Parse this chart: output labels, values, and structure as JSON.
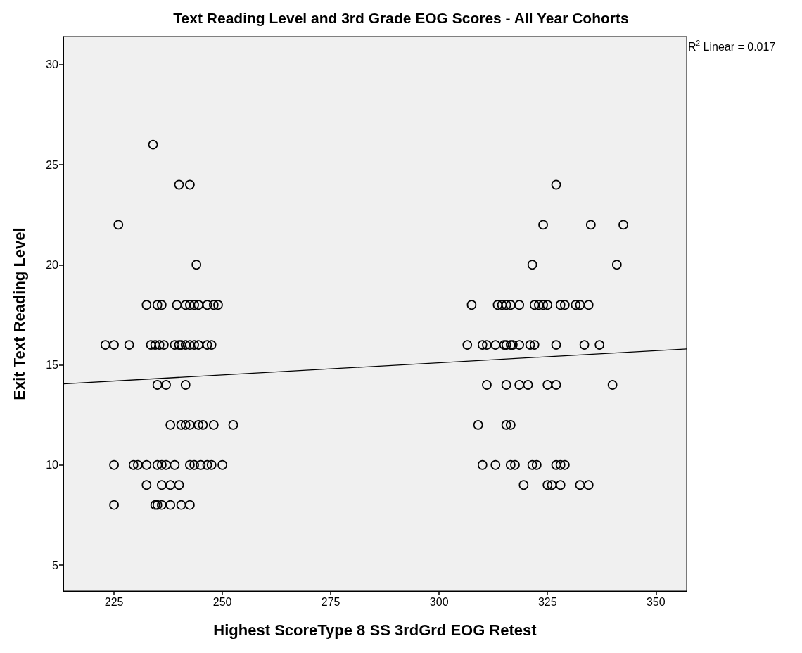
{
  "chart_data": {
    "type": "scatter",
    "title": "Text Reading Level and 3rd Grade EOG Scores - All Year Cohorts",
    "xlabel": "Highest ScoreType 8 SS 3rdGrd EOG Retest",
    "ylabel": "Exit Text Reading Level",
    "annotations": [
      "R$^{2}$ Linear = 0.017"
    ],
    "xlim": [
      213.3,
      357.1
    ],
    "ylim": [
      3.7,
      31.4
    ],
    "xticks": [
      225,
      250,
      275,
      300,
      325,
      350
    ],
    "yticks": [
      5,
      10,
      15,
      20,
      25,
      30
    ],
    "marker": "circle",
    "series": [
      {
        "color": "#000000",
        "x": [
          234,
          240,
          242.5,
          226,
          244,
          232.5,
          235,
          236,
          239.5,
          241.5,
          242.5,
          243.5,
          244.5,
          246.5,
          248,
          249,
          223,
          225,
          228.5,
          233.5,
          234.5,
          235.5,
          236.5,
          239,
          240,
          240.5,
          241.5,
          242.5,
          243.5,
          244.5,
          246.5,
          247.5,
          235,
          237,
          241.5,
          238,
          240.5,
          241.5,
          242.5,
          244.5,
          245.5,
          248,
          252.5,
          225,
          229.5,
          230.5,
          232.5,
          235,
          236,
          237,
          239,
          242.5,
          243.5,
          245,
          246.5,
          247.5,
          250,
          232.5,
          236,
          238,
          240,
          225,
          234.5,
          235,
          236,
          238,
          240.5,
          242.5,
          327,
          324,
          335,
          342.5,
          321.5,
          341,
          307.5,
          313.5,
          314.5,
          315.5,
          316.5,
          318.5,
          322,
          323,
          324,
          325,
          328,
          329,
          331.5,
          332.5,
          334.5,
          306.5,
          310,
          311,
          313,
          315,
          315.5,
          316.5,
          317,
          318.5,
          321,
          322,
          327,
          333.5,
          337,
          311,
          315.5,
          318.5,
          320.5,
          325,
          327,
          340,
          309,
          315.5,
          316.5,
          310,
          313,
          316.5,
          317.5,
          321.5,
          322.5,
          327,
          328,
          329,
          319.5,
          325,
          326,
          328,
          332.5,
          334.5
        ],
        "values": [
          26,
          24,
          24,
          22,
          20,
          18,
          18,
          18,
          18,
          18,
          18,
          18,
          18,
          18,
          18,
          18,
          16,
          16,
          16,
          16,
          16,
          16,
          16,
          16,
          16,
          16,
          16,
          16,
          16,
          16,
          16,
          16,
          14,
          14,
          14,
          12,
          12,
          12,
          12,
          12,
          12,
          12,
          12,
          10,
          10,
          10,
          10,
          10,
          10,
          10,
          10,
          10,
          10,
          10,
          10,
          10,
          10,
          9,
          9,
          9,
          9,
          8,
          8,
          8,
          8,
          8,
          8,
          8,
          24,
          22,
          22,
          22,
          20,
          20,
          18,
          18,
          18,
          18,
          18,
          18,
          18,
          18,
          18,
          18,
          18,
          18,
          18,
          18,
          18,
          16,
          16,
          16,
          16,
          16,
          16,
          16,
          16,
          16,
          16,
          16,
          16,
          16,
          16,
          14,
          14,
          14,
          14,
          14,
          14,
          14,
          12,
          12,
          12,
          10,
          10,
          10,
          10,
          10,
          10,
          10,
          10,
          10,
          9,
          9,
          9,
          9,
          9,
          9
        ]
      },
      {
        "type": "line",
        "color": "#000000",
        "marker": "none",
        "x": [
          213.3,
          357.1
        ],
        "values": [
          14.05,
          15.8
        ]
      }
    ]
  }
}
